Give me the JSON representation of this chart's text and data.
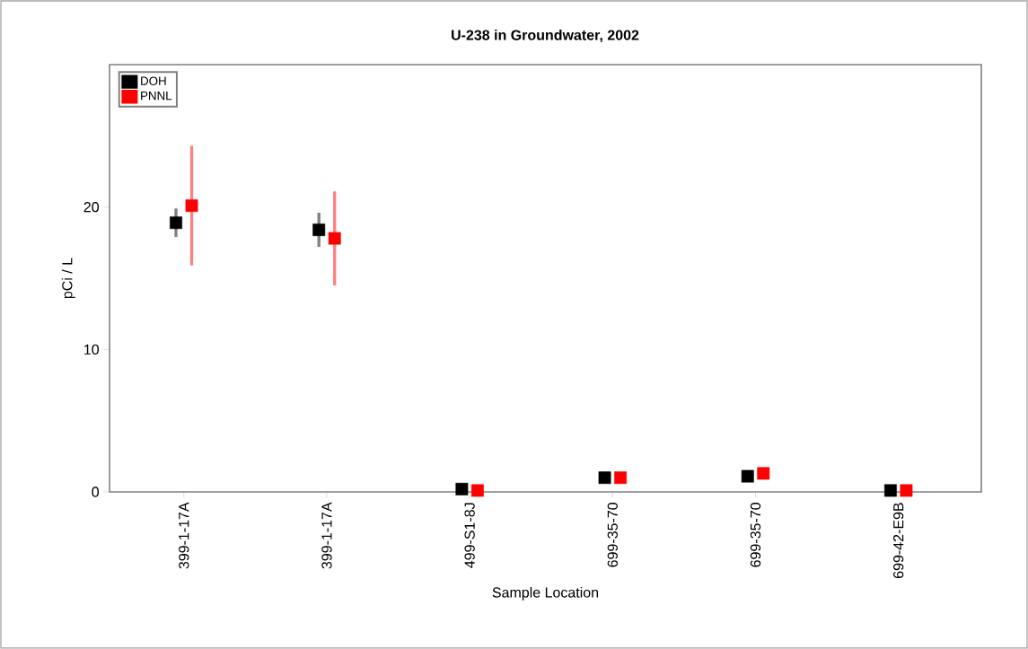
{
  "chart_data": {
    "type": "scatter",
    "title": "U-238 in Groundwater, 2002",
    "xlabel": "Sample Location",
    "ylabel": "pCi / L",
    "categories": [
      "399-1-17A",
      "399-1-17A",
      "499-S1-8J",
      "699-35-70",
      "699-35-70",
      "699-42-E9B"
    ],
    "series": [
      {
        "name": "DOH",
        "color": "#000000",
        "values": [
          18.9,
          18.4,
          0.2,
          1.0,
          1.1,
          0.1
        ],
        "errors": [
          1.0,
          1.2,
          null,
          null,
          0.2,
          null
        ]
      },
      {
        "name": "PNNL",
        "color": "#ff0000",
        "values": [
          20.1,
          17.8,
          0.1,
          1.0,
          1.3,
          0.1
        ],
        "errors": [
          4.2,
          3.3,
          null,
          0.4,
          0.3,
          null
        ]
      }
    ],
    "ylim": [
      0,
      30
    ],
    "yticks": [
      0,
      10,
      20
    ],
    "marker": "square",
    "legend": "top left",
    "grid": false
  }
}
